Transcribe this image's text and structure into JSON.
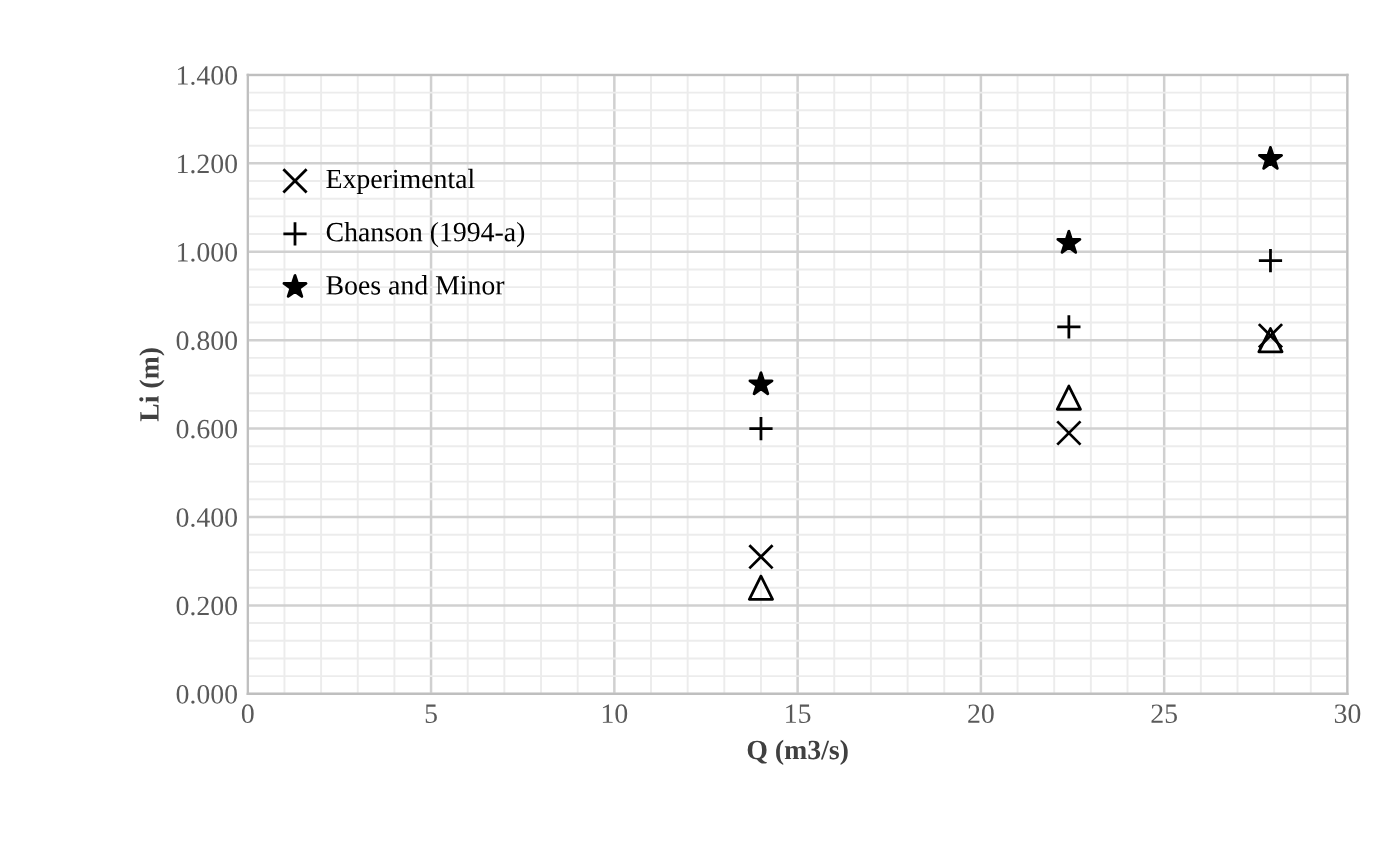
{
  "chart_data": {
    "type": "scatter",
    "xlabel": "Q (m3/s)",
    "ylabel": "Li (m)",
    "xlim": [
      0,
      30
    ],
    "xticks": [
      0,
      5,
      10,
      15,
      20,
      25,
      30
    ],
    "ylim": [
      0,
      1.4
    ],
    "yticks": [
      {
        "value": 0,
        "label": "0.000"
      },
      {
        "value": 0.2,
        "label": "0.200"
      },
      {
        "value": 0.4,
        "label": "0.400"
      },
      {
        "value": 0.6,
        "label": "0.600"
      },
      {
        "value": 0.8,
        "label": "0.800"
      },
      {
        "value": 1.0,
        "label": "1.000"
      },
      {
        "value": 1.2,
        "label": "1.200"
      },
      {
        "value": 1.4,
        "label": "1.400"
      }
    ],
    "grid": true,
    "legend": "top left",
    "series": [
      {
        "marker": "triangle",
        "color": "#000000",
        "x": [
          14,
          22.4,
          27.9
        ],
        "values": [
          0.24,
          0.67,
          0.8
        ]
      },
      {
        "name": "Experimental",
        "marker": "cross",
        "color": "#000000",
        "x": [
          14,
          22.4,
          27.9
        ],
        "values": [
          0.31,
          0.59,
          0.81
        ]
      },
      {
        "name": "Chanson (1994-a)",
        "marker": "plus",
        "color": "#000000",
        "x": [
          14,
          22.4,
          27.9
        ],
        "values": [
          0.6,
          0.83,
          0.98
        ]
      },
      {
        "name": "Boes and Minor",
        "marker": "star",
        "color": "#000000",
        "x": [
          14,
          22.4,
          27.9
        ],
        "values": [
          0.7,
          1.02,
          1.21
        ]
      }
    ]
  }
}
